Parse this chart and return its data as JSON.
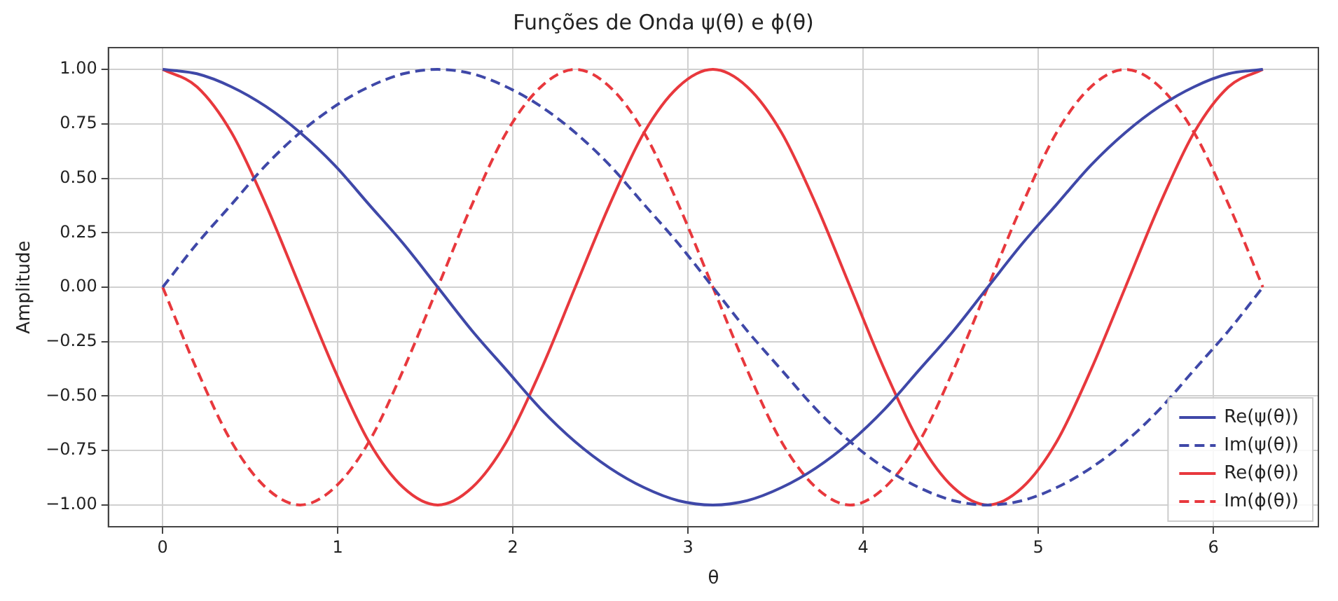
{
  "chart_data": {
    "type": "line",
    "title": "Funções de Onda ψ(θ) e ϕ(θ)",
    "xlabel": "θ",
    "ylabel": "Amplitude",
    "x": [
      0,
      0.196,
      0.393,
      0.589,
      0.785,
      0.982,
      1.178,
      1.374,
      1.571,
      1.767,
      1.963,
      2.16,
      2.356,
      2.553,
      2.749,
      2.945,
      3.142,
      3.338,
      3.534,
      3.731,
      3.927,
      4.123,
      4.32,
      4.516,
      4.712,
      4.909,
      5.105,
      5.301,
      5.498,
      5.694,
      5.89,
      6.087,
      6.283
    ],
    "series": [
      {
        "name": "Re(ψ(θ))",
        "color": "#3f48a8",
        "line_style": "solid",
        "values": [
          1,
          0.98,
          0.92,
          0.83,
          0.71,
          0.56,
          0.38,
          0.2,
          0,
          -0.2,
          -0.38,
          -0.56,
          -0.71,
          -0.83,
          -0.92,
          -0.98,
          -1,
          -0.98,
          -0.92,
          -0.83,
          -0.71,
          -0.56,
          -0.38,
          -0.2,
          0,
          0.2,
          0.38,
          0.56,
          0.71,
          0.83,
          0.92,
          0.98,
          1
        ]
      },
      {
        "name": "Im(ψ(θ))",
        "color": "#3f48a8",
        "line_style": "dashed",
        "values": [
          0,
          0.2,
          0.38,
          0.56,
          0.71,
          0.83,
          0.92,
          0.98,
          1,
          0.98,
          0.92,
          0.83,
          0.71,
          0.56,
          0.38,
          0.2,
          0,
          -0.2,
          -0.38,
          -0.56,
          -0.71,
          -0.83,
          -0.92,
          -0.98,
          -1,
          -0.98,
          -0.92,
          -0.83,
          -0.71,
          -0.56,
          -0.38,
          -0.2,
          0
        ]
      },
      {
        "name": "Re(ϕ(θ))",
        "color": "#e8383d",
        "line_style": "solid",
        "values": [
          1,
          0.92,
          0.71,
          0.38,
          0,
          -0.38,
          -0.71,
          -0.92,
          -1,
          -0.92,
          -0.71,
          -0.38,
          0,
          0.38,
          0.71,
          0.92,
          1,
          0.92,
          0.71,
          0.38,
          0,
          -0.38,
          -0.71,
          -0.92,
          -1,
          -0.92,
          -0.71,
          -0.38,
          0,
          0.38,
          0.71,
          0.92,
          1
        ]
      },
      {
        "name": "Im(ϕ(θ))",
        "color": "#e8383d",
        "line_style": "dashed",
        "values": [
          0,
          -0.38,
          -0.71,
          -0.92,
          -1,
          -0.92,
          -0.71,
          -0.38,
          0,
          0.38,
          0.71,
          0.92,
          1,
          0.92,
          0.71,
          0.38,
          0,
          -0.38,
          -0.71,
          -0.92,
          -1,
          -0.92,
          -0.71,
          -0.38,
          0,
          0.38,
          0.71,
          0.92,
          1,
          0.92,
          0.71,
          0.38,
          0
        ]
      }
    ],
    "xlim": [
      -0.31,
      6.6
    ],
    "xticks": [
      0,
      1,
      2,
      3,
      4,
      5,
      6
    ],
    "ylim": [
      -1.1,
      1.1
    ],
    "yticks": [
      {
        "value": -1,
        "label": "−1.00"
      },
      {
        "value": -0.75,
        "label": "−0.75"
      },
      {
        "value": -0.5,
        "label": "−0.50"
      },
      {
        "value": -0.25,
        "label": "−0.25"
      },
      {
        "value": 0,
        "label": "0.00"
      },
      {
        "value": 0.25,
        "label": "0.25"
      },
      {
        "value": 0.5,
        "label": "0.50"
      },
      {
        "value": 0.75,
        "label": "0.75"
      },
      {
        "value": 1,
        "label": "1.00"
      }
    ],
    "grid": true,
    "legend": "bottom right",
    "marker": "none"
  }
}
